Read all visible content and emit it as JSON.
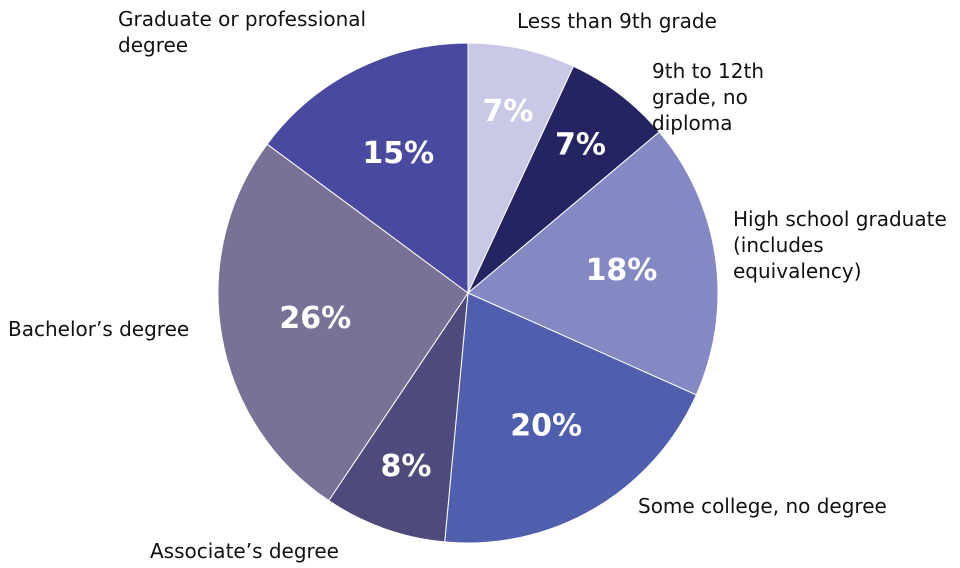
{
  "chart_data": {
    "type": "pie",
    "categories": [
      "Less than 9th grade",
      "9th to 12th grade, no diploma",
      "High school graduate (includes equivalency)",
      "Some college, no degree",
      "Associate’s degree",
      "Bachelor’s degree",
      "Graduate or professional degree"
    ],
    "values": [
      7,
      7,
      18,
      20,
      8,
      26,
      15
    ],
    "value_labels": [
      "7%",
      "7%",
      "18%",
      "20%",
      "8%",
      "26%",
      "15%"
    ],
    "colors": [
      "#c9c8e6",
      "#252361",
      "#8489c4",
      "#4f5fae",
      "#4e4a7c",
      "#797196",
      "#4a49a0"
    ]
  }
}
